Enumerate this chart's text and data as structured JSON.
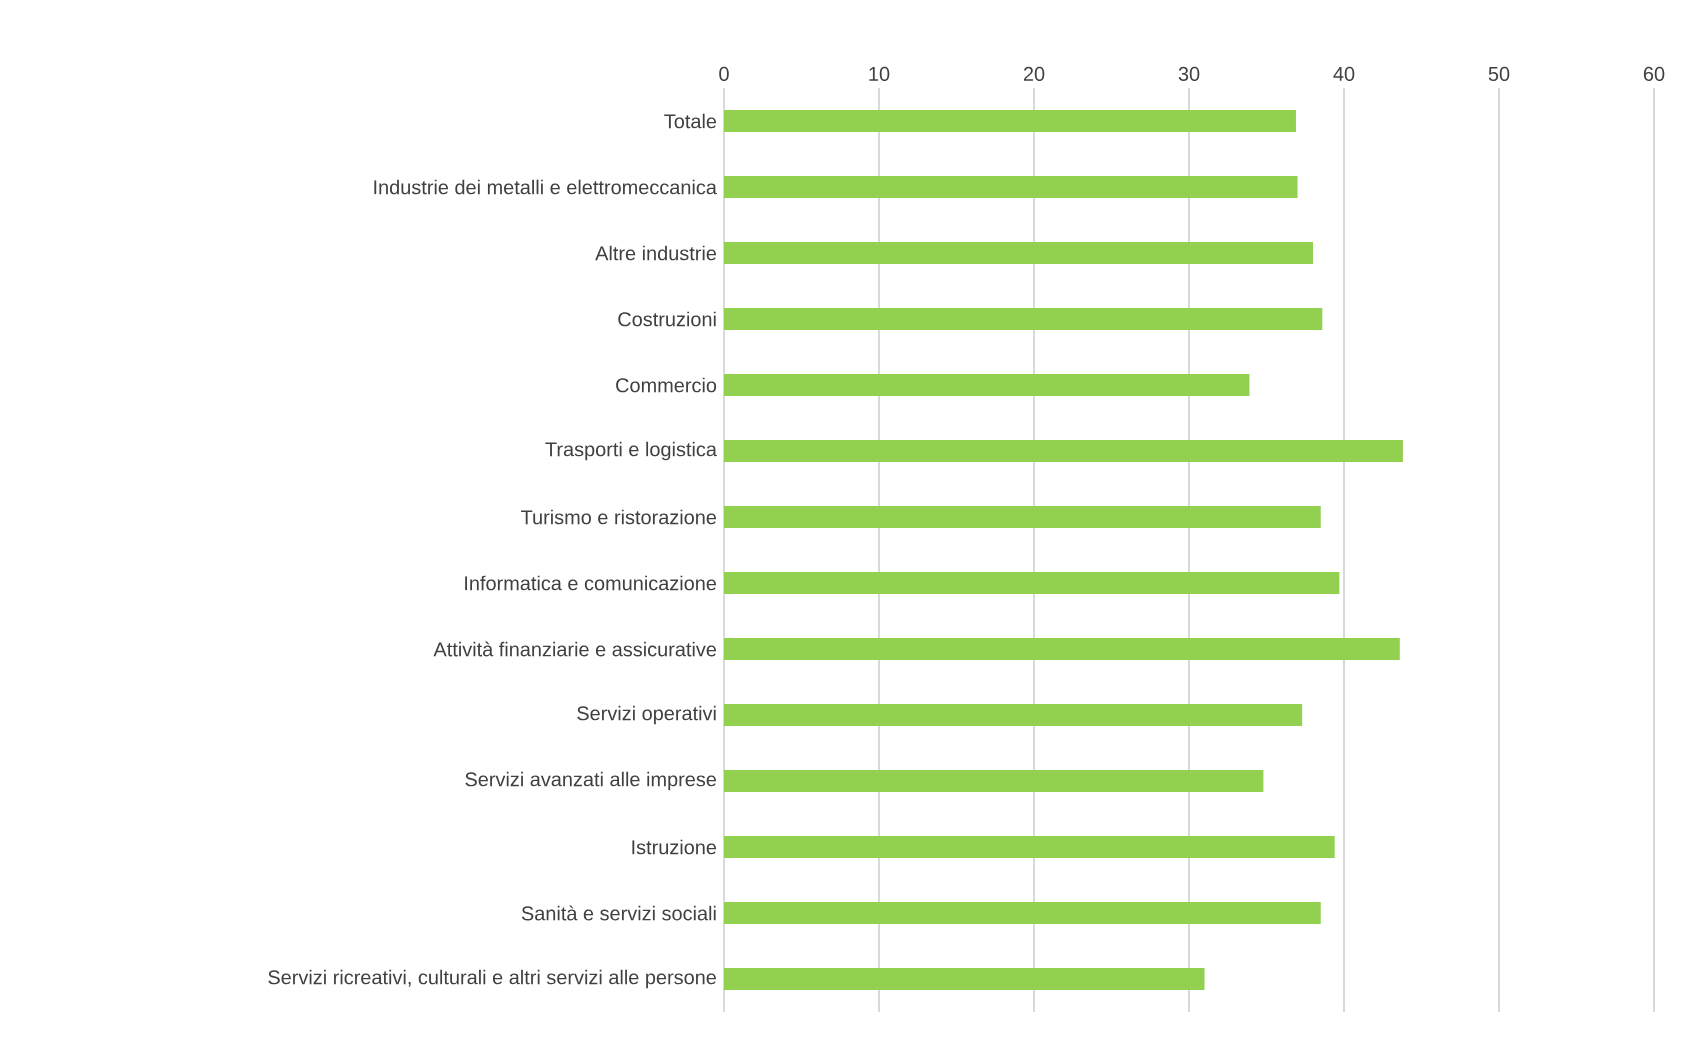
{
  "chart_data": {
    "type": "bar",
    "orientation": "horizontal",
    "categories": [
      "Totale",
      "Industrie dei metalli e elettromeccanica",
      "Altre industrie",
      "Costruzioni",
      "Commercio",
      "Trasporti e logistica",
      "Turismo e ristorazione",
      "Informatica e comunicazione",
      "Attività finanziarie e assicurative",
      "Servizi operativi",
      "Servizi avanzati alle imprese",
      "Istruzione",
      "Sanità e servizi sociali",
      "Servizi ricreativi, culturali e altri servizi alle persone"
    ],
    "values": [
      36.9,
      37.0,
      38.0,
      38.6,
      33.9,
      43.8,
      38.5,
      39.7,
      43.6,
      37.3,
      34.8,
      39.4,
      38.5,
      31.0
    ],
    "color": "#92d050",
    "xlim": [
      0,
      60
    ],
    "xticks": [
      0,
      10,
      20,
      30,
      40,
      50,
      60
    ],
    "grid": "x"
  }
}
